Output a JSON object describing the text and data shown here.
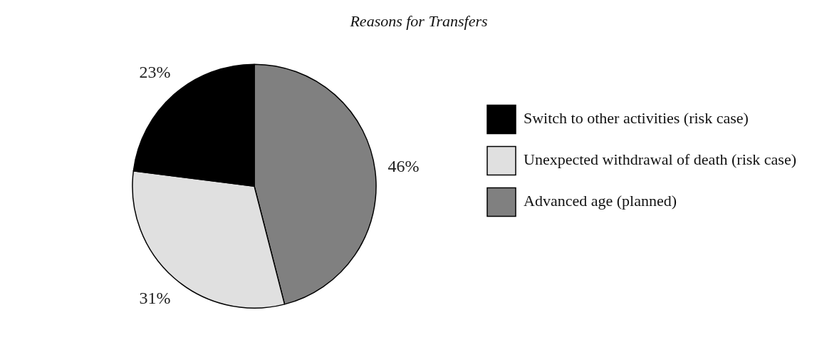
{
  "chart_data": {
    "type": "pie",
    "title": "Reasons for Transfers",
    "categories": [
      "Advanced age (planned)",
      "Unexpected withdrawal of death (risk case)",
      "Switch to other activities (risk case)"
    ],
    "values": [
      46,
      31,
      23
    ],
    "colors": [
      "#808080",
      "#e0e0e0",
      "#000000"
    ],
    "value_labels": [
      "46%",
      "31%",
      "23%"
    ],
    "legend": "right"
  }
}
